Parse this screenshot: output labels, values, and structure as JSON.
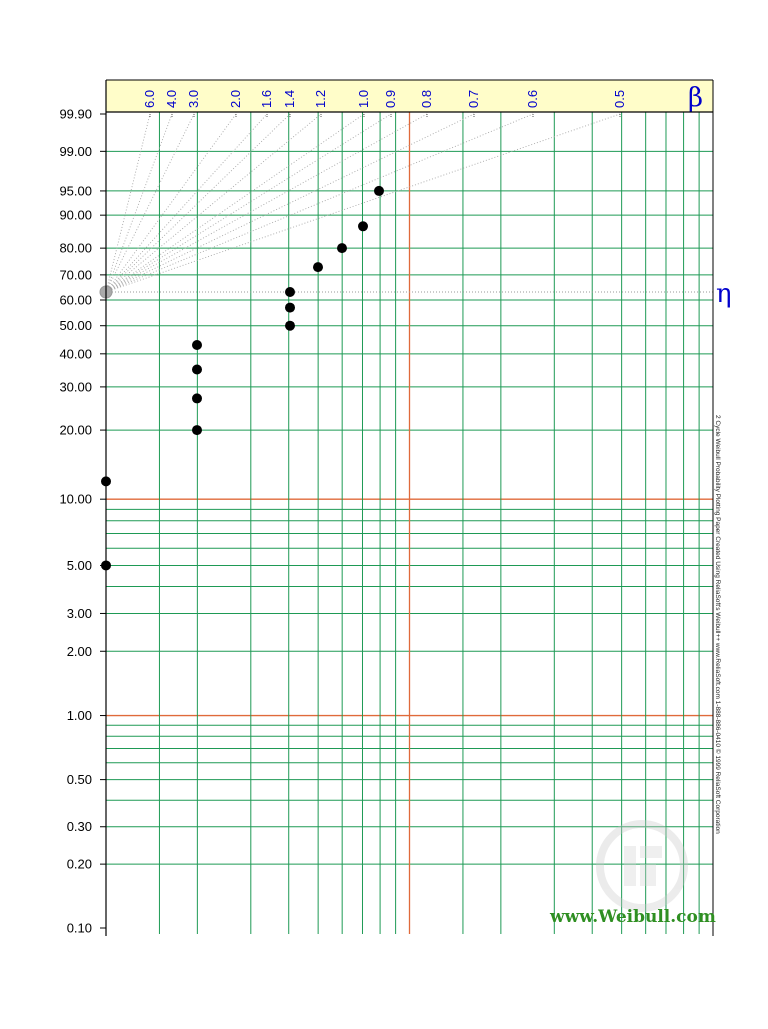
{
  "colors": {
    "vertical_grid": "#1e9a55",
    "horizontal_grid": "#1e9a55",
    "decade_line": "#e06a3a",
    "beta_band": "#fffdc9",
    "beta_text": "#0000cc",
    "points": "#000000",
    "eta_marker": "#aaaaaa",
    "url_text": "#2f8f22"
  },
  "beta": {
    "symbol": "β",
    "ticks": [
      "6.0",
      "4.0",
      "3.0",
      "2.0",
      "1.6",
      "1.4",
      "1.2",
      "1.0",
      "0.9",
      "0.8",
      "0.7",
      "0.6",
      "0.5"
    ]
  },
  "eta": {
    "symbol": "η"
  },
  "side_text": "2 Cycle Weibull Probability Plotting Paper     Created Using ReliaSoft's Weibull++      www.ReliaSoft.com   1-888-886-0410   © 1999 ReliaSoft Corporation",
  "watermark_url": "www.Weibull.com",
  "chart_data": {
    "type": "scatter",
    "y_scale": "weibull probability",
    "ylim": [
      0.1,
      99.9
    ],
    "grid": true,
    "y_ticks": [
      "99.90",
      "99.00",
      "95.00",
      "90.00",
      "80.00",
      "70.00",
      "60.00",
      "50.00",
      "40.00",
      "30.00",
      "20.00",
      "10.00",
      "5.00",
      "3.00",
      "2.00",
      "1.00",
      "0.50",
      "0.30",
      "0.20",
      "0.10"
    ],
    "y_tick_values": [
      99.9,
      99,
      95,
      90,
      80,
      70,
      60,
      50,
      40,
      30,
      20,
      10,
      5,
      3,
      2,
      1,
      0.5,
      0.3,
      0.2,
      0.1
    ],
    "eta_level": 63.2,
    "series": [
      {
        "points": [
          {
            "col": 0,
            "y": 5
          },
          {
            "col": 0,
            "y": 12
          },
          {
            "col": 2,
            "y": 20
          },
          {
            "col": 2,
            "y": 27
          },
          {
            "col": 2,
            "y": 35
          },
          {
            "col": 2,
            "y": 43
          },
          {
            "col": 5,
            "y": 50
          },
          {
            "col": 5,
            "y": 57
          },
          {
            "col": 5,
            "y": 63.2
          },
          {
            "col": 6,
            "y": 73
          },
          {
            "col": 7,
            "y": 80
          },
          {
            "col": 8,
            "y": 87
          },
          {
            "col": 9,
            "y": 95
          }
        ]
      }
    ]
  }
}
